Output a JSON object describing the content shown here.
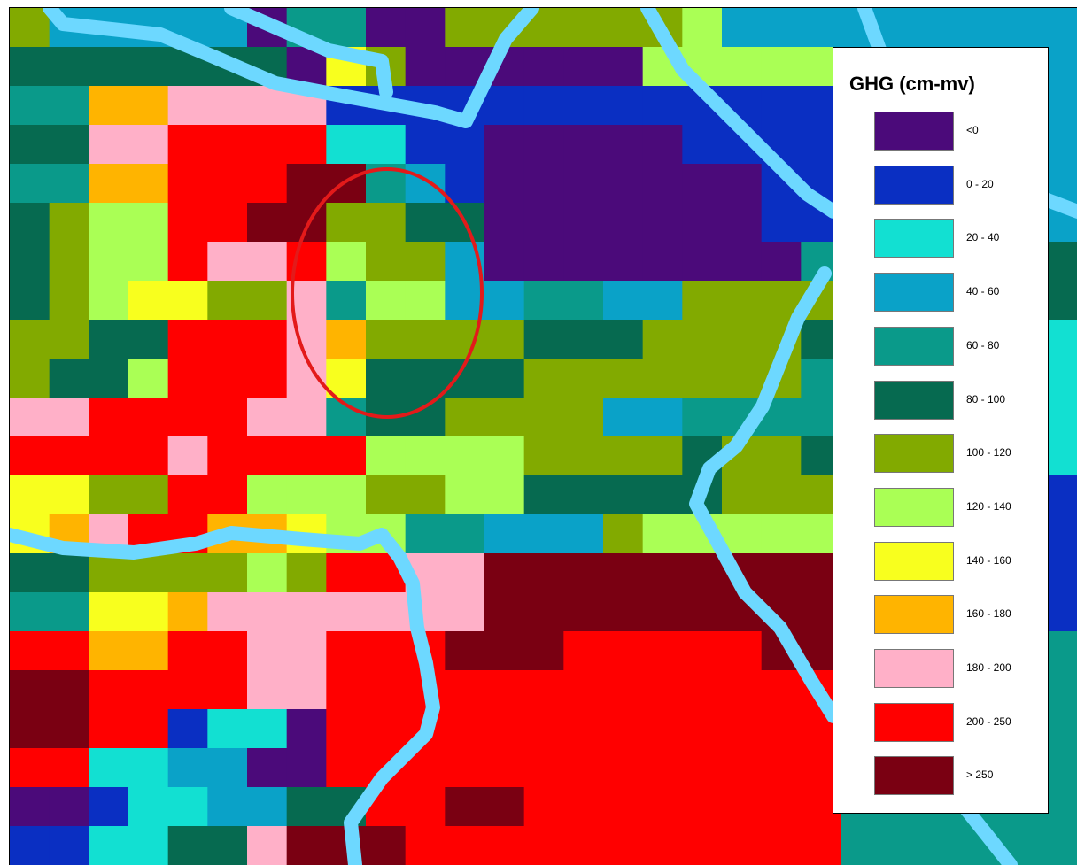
{
  "legend": {
    "title": "GHG (cm-mv)",
    "classes": [
      {
        "label": "<0",
        "color": "#4b0a7a"
      },
      {
        "label": "0 - 20",
        "color": "#0a2fc2"
      },
      {
        "label": "20 - 40",
        "color": "#12e0d2"
      },
      {
        "label": "40 - 60",
        "color": "#0aa2c8"
      },
      {
        "label": "60 - 80",
        "color": "#0a9a8a"
      },
      {
        "label": "80 - 100",
        "color": "#066a50"
      },
      {
        "label": "100 - 120",
        "color": "#82aa00"
      },
      {
        "label": "120 - 140",
        "color": "#aaff55"
      },
      {
        "label": "140 - 160",
        "color": "#f8ff1e"
      },
      {
        "label": "160 - 180",
        "color": "#ffb400"
      },
      {
        "label": "180 - 200",
        "color": "#ffb0c8"
      },
      {
        "label": "200 - 250",
        "color": "#ff0000"
      },
      {
        "label": "> 250",
        "color": "#7a0012"
      }
    ]
  },
  "map": {
    "waterway_color": "#6dd8ff",
    "highlight_color": "#e31a1a",
    "grid_rows": [
      "GDDDDDAEEAAGGGGGGHDDDDDDDDD",
      "FFFFFFFAIGAAAAAAHHHHHHDDDDD",
      "EEJJKKKKBBBBBBBBBBBBBBBDDDD",
      "FFKKLLLLCCBBAAAAABBBBBBEEFD",
      "EEJJLLLMMEDBAAAAAAABBBBEEHD",
      "FGHHLLMMGGFFAAAAAAABBBBEEHD",
      "FGHHLKKLHGGDAAAAAAAAEEDDEEF",
      "FGHIIGGKEHHDDEEDDGGGGEEDFFF",
      "GGFFLLLKJGGGGFFFGGGGFFEEFFC",
      "GFFHLLLKIFFFFGGGGGGGEEEFFFC",
      "KKLLLLKKEFFGGGGDDEEEEEEEEEC",
      "LLLLKLLLLHHHHGGGGFGGFFCCCCC",
      "IIGGLLHHHGGHHFFFFFGGGEEBBBB",
      "IJKLLJJIHHEEDDDGHHHHHDDBBBB",
      "FFGGGGHGLLKKMMMMMMMMMDDBBBB",
      "EEIIJKKKKKKKMMMMMMMMMEEEBBB",
      "LLJJLLKKLLLMMMLLLLLMMEEEEEE",
      "MMLLLLKKLLLLLLLLLLLLLEEEEEE",
      "MMLLBCCALLLLLLLLLLLLLEEEEEE",
      "LLCCDDAALLLLLLLLLLLLLEEEEEE",
      "AABCCDDFFLLMMLLLLLLLLEEEEEE",
      "BBCCFFKMMMLLLLLLLLLLLEEEEEE"
    ],
    "legend_codes": "ABCDEFGHIJKLM",
    "highlight_ellipse_note": ""
  }
}
